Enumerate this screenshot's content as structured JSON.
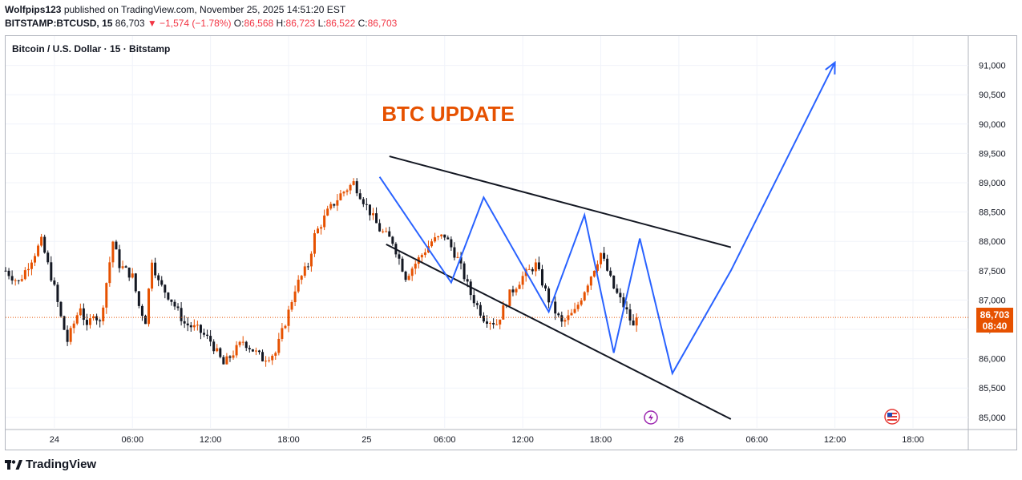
{
  "header": {
    "author": "Wolfpips123",
    "published_text": "published on TradingView.com, November 25, 2025 14:51:20 EST",
    "symbol": "BITSTAMP:BTCUSD, 15",
    "last": "86,703",
    "change": "▼ −1,574 (−1.78%)",
    "o_label": "O:",
    "o_val": "86,568",
    "h_label": "H:",
    "h_val": "86,723",
    "l_label": "L:",
    "l_val": "86,522",
    "c_label": "C:",
    "c_val": "86,703"
  },
  "symbol_label": "Bitcoin / U.S. Dollar · 15 · Bitstamp",
  "annotation": "BTC UPDATE",
  "price_tag": {
    "price": "86,703",
    "countdown": "08:40"
  },
  "footer": {
    "brand": "TradingView"
  },
  "colors": {
    "up": "#e65100",
    "down": "#131722",
    "projection": "#2962ff",
    "trend": "#131722",
    "annotation": "#e65100",
    "price_line": "#e65100"
  },
  "chart_data": {
    "type": "candlestick",
    "symbol": "BITSTAMP:BTCUSD",
    "timeframe": "15",
    "y_ticks": [
      85000,
      85500,
      86000,
      86500,
      87000,
      87500,
      88000,
      88500,
      89000,
      89500,
      90000,
      90500,
      91000
    ],
    "y_tick_labels": [
      "85,000",
      "85,500",
      "86,000",
      "86,500",
      "87,000",
      "87,500",
      "88,000",
      "88,500",
      "89,000",
      "89,500",
      "90,000",
      "90,500",
      "91,000"
    ],
    "ylim": [
      84820,
      91500
    ],
    "x_ticks": [
      {
        "label": "24",
        "hours": 0
      },
      {
        "label": "06:00",
        "hours": 6
      },
      {
        "label": "12:00",
        "hours": 12
      },
      {
        "label": "18:00",
        "hours": 18
      },
      {
        "label": "25",
        "hours": 24
      },
      {
        "label": "06:00",
        "hours": 30
      },
      {
        "label": "12:00",
        "hours": 36
      },
      {
        "label": "18:00",
        "hours": 42
      },
      {
        "label": "26",
        "hours": 48
      },
      {
        "label": "06:00",
        "hours": 54
      },
      {
        "label": "12:00",
        "hours": 60
      },
      {
        "label": "18:00",
        "hours": 66
      }
    ],
    "xlim_hours": [
      -3.75,
      70.25
    ],
    "candle_interval_hours": 0.25,
    "last_price": 86703,
    "price_path": [
      [
        -3.75,
        87500
      ],
      [
        -2.75,
        87300
      ],
      [
        -1.0,
        88000
      ],
      [
        0.0,
        87200
      ],
      [
        0.5,
        86700
      ],
      [
        1.0,
        86300
      ],
      [
        2.0,
        86900
      ],
      [
        2.5,
        86500
      ],
      [
        3.0,
        86800
      ],
      [
        3.5,
        86600
      ],
      [
        4.5,
        88000
      ],
      [
        5.0,
        87600
      ],
      [
        6.0,
        87400
      ],
      [
        6.5,
        86900
      ],
      [
        7.0,
        86650
      ],
      [
        7.5,
        87700
      ],
      [
        8.0,
        87300
      ],
      [
        9.0,
        87000
      ],
      [
        9.5,
        86800
      ],
      [
        10.0,
        86600
      ],
      [
        11.0,
        86500
      ],
      [
        12.0,
        86300
      ],
      [
        13.0,
        85900
      ],
      [
        14.5,
        86300
      ],
      [
        15.0,
        86200
      ],
      [
        16.0,
        86000
      ],
      [
        17.0,
        86100
      ],
      [
        18.0,
        86800
      ],
      [
        18.5,
        87200
      ],
      [
        19.5,
        87600
      ],
      [
        20.0,
        88100
      ],
      [
        21.0,
        88500
      ],
      [
        22.0,
        88800
      ],
      [
        23.0,
        89000
      ],
      [
        24.0,
        88600
      ],
      [
        25.0,
        88200
      ],
      [
        26.0,
        88000
      ],
      [
        26.5,
        87700
      ],
      [
        27.0,
        87400
      ],
      [
        28.0,
        87700
      ],
      [
        29.0,
        88000
      ],
      [
        30.0,
        88100
      ],
      [
        31.0,
        87700
      ],
      [
        32.0,
        87100
      ],
      [
        33.0,
        86700
      ],
      [
        34.0,
        86600
      ],
      [
        35.0,
        87100
      ],
      [
        36.0,
        87400
      ],
      [
        37.0,
        87600
      ],
      [
        38.0,
        87000
      ],
      [
        39.0,
        86600
      ],
      [
        40.0,
        86800
      ],
      [
        41.0,
        87300
      ],
      [
        42.0,
        87800
      ],
      [
        43.0,
        87200
      ],
      [
        44.0,
        86800
      ],
      [
        44.75,
        86400
      ]
    ],
    "trendlines": [
      {
        "name": "upper",
        "from": [
          25.75,
          89450
        ],
        "to": [
          52.0,
          87900
        ]
      },
      {
        "name": "lower",
        "from": [
          25.5,
          87950
        ],
        "to": [
          52.0,
          84970
        ]
      }
    ],
    "projection_path": [
      [
        25.0,
        89100
      ],
      [
        30.5,
        87300
      ],
      [
        33.0,
        88750
      ],
      [
        38.0,
        86800
      ],
      [
        40.75,
        88450
      ],
      [
        43.0,
        86100
      ],
      [
        45.0,
        88050
      ],
      [
        47.5,
        85750
      ],
      [
        52.0,
        87500
      ],
      [
        60.0,
        91050
      ]
    ],
    "projection_arrow": true
  }
}
